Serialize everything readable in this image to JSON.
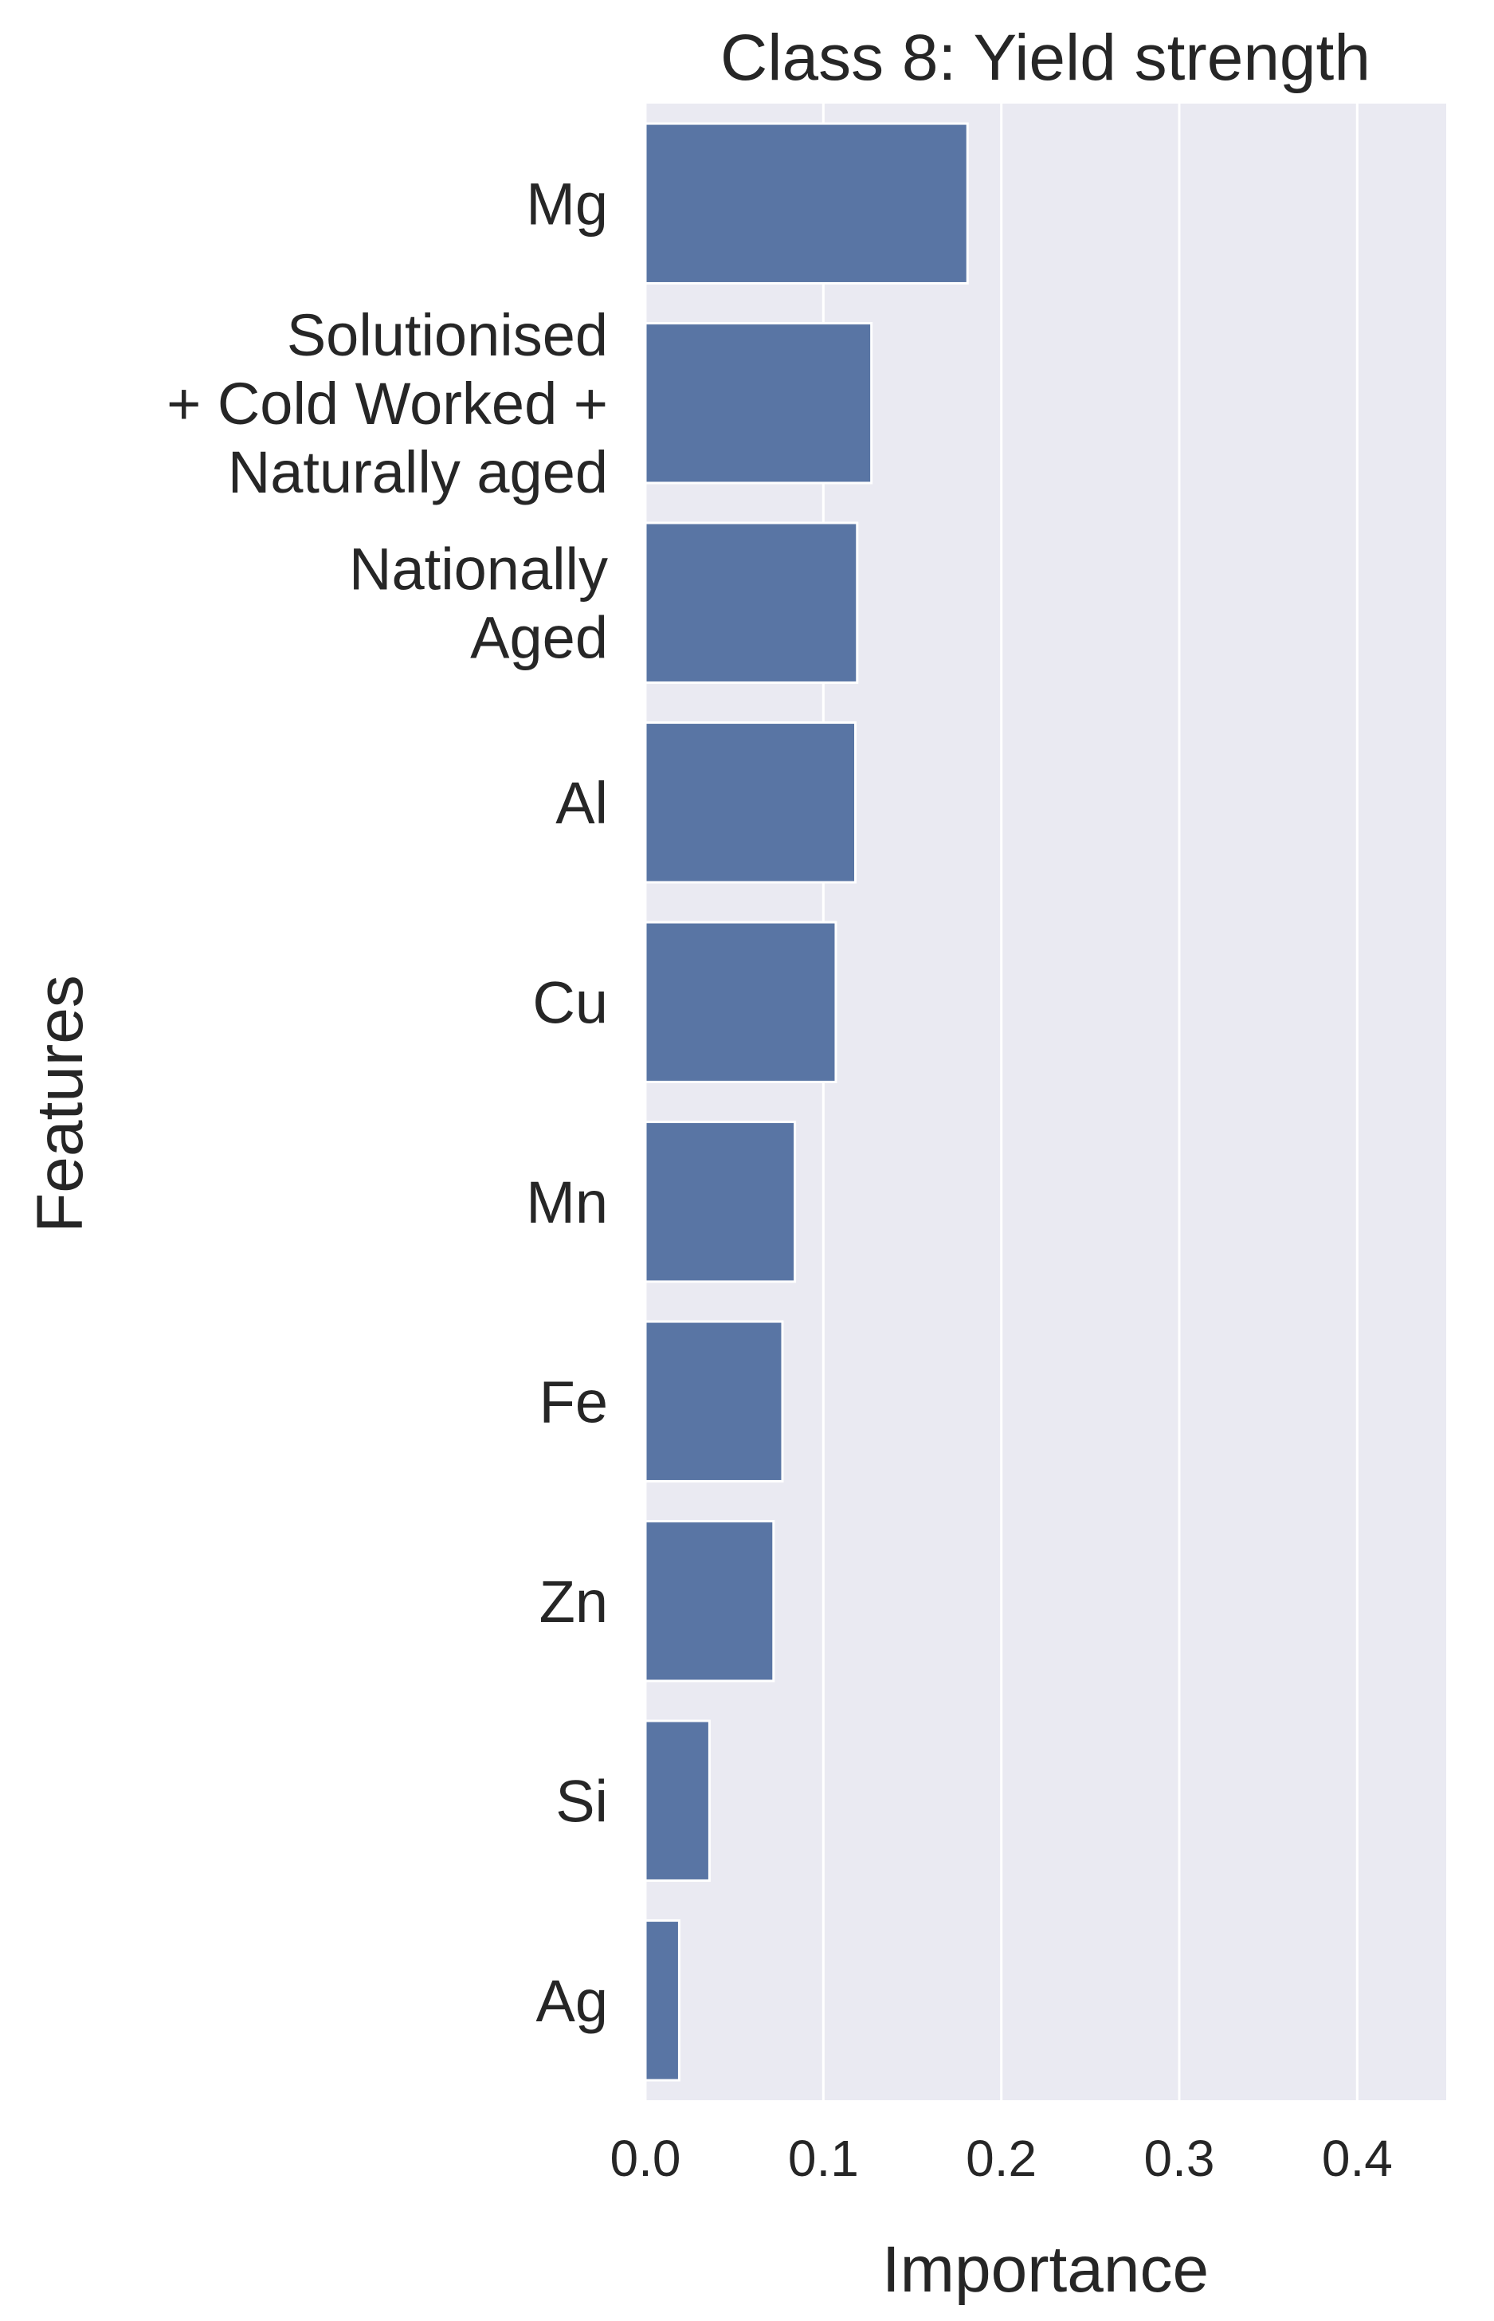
{
  "chart_data": {
    "type": "bar",
    "orientation": "horizontal",
    "title": "Class 8: Yield strength",
    "xlabel": "Importance",
    "ylabel": "Features",
    "categories": [
      [
        "Mg"
      ],
      [
        "Solutionised",
        "+ Cold Worked +",
        "Naturally aged"
      ],
      [
        "Nationally",
        "Aged"
      ],
      [
        "Al"
      ],
      [
        "Cu"
      ],
      [
        "Mn"
      ],
      [
        "Fe"
      ],
      [
        "Zn"
      ],
      [
        "Si"
      ],
      [
        "Ag"
      ]
    ],
    "values": [
      0.181,
      0.127,
      0.119,
      0.118,
      0.107,
      0.084,
      0.077,
      0.072,
      0.036,
      0.019
    ],
    "xlim": [
      0,
      0.45
    ],
    "xticks": [
      "0.0",
      "0.1",
      "0.2",
      "0.3",
      "0.4"
    ],
    "grid": "vertical",
    "colors": {
      "bar": "#5975a4",
      "bar_edge": "#ffffff",
      "plot_bg": "#eaeaf2",
      "grid": "#ffffff"
    }
  }
}
